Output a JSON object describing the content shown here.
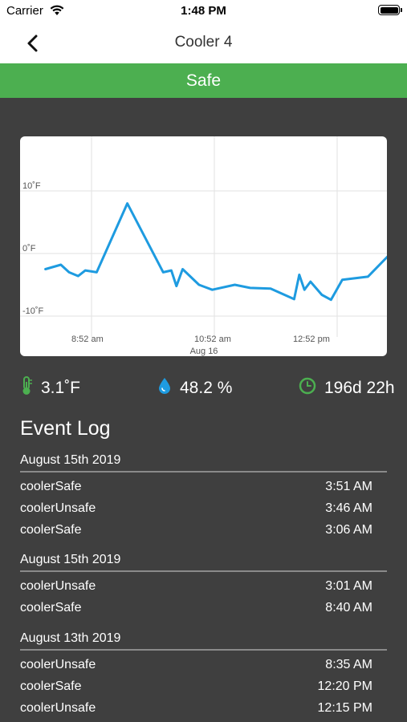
{
  "status_bar": {
    "carrier": "Carrier",
    "time": "1:48 PM"
  },
  "nav": {
    "title": "Cooler 4"
  },
  "banner": {
    "label": "Safe",
    "color": "#4caf50"
  },
  "chart_data": {
    "type": "line",
    "ylabel": "",
    "xlabel": "",
    "ylim": [
      -12,
      20
    ],
    "y_ticks": [
      "-10˚F",
      "0˚F",
      "10˚F"
    ],
    "x_ticks": [
      "8:52 am",
      "10:52 am",
      "12:52 pm"
    ],
    "x_sub_label": "Aug 16",
    "series": [
      {
        "color": "#1e9be0",
        "points": [
          [
            "8:07",
            -2.5
          ],
          [
            "8:22",
            -1.8
          ],
          [
            "8:30",
            -3.0
          ],
          [
            "8:39",
            -3.6
          ],
          [
            "8:46",
            -2.7
          ],
          [
            "8:57",
            -3.0
          ],
          [
            "9:27",
            8.0
          ],
          [
            "10:02",
            -3.0
          ],
          [
            "10:10",
            -2.7
          ],
          [
            "10:15",
            -5.2
          ],
          [
            "10:21",
            -2.5
          ],
          [
            "10:37",
            -5.0
          ],
          [
            "10:50",
            -5.8
          ],
          [
            "11:12",
            -5.0
          ],
          [
            "11:27",
            -5.5
          ],
          [
            "11:47",
            -5.6
          ],
          [
            "12:10",
            -7.3
          ],
          [
            "12:15",
            -3.4
          ],
          [
            "12:20",
            -5.8
          ],
          [
            "12:26",
            -4.5
          ],
          [
            "12:37",
            -6.6
          ],
          [
            "12:46",
            -7.4
          ],
          [
            "12:57",
            -4.2
          ],
          [
            "13:22",
            -3.7
          ],
          [
            "14:02",
            3.0
          ]
        ]
      }
    ]
  },
  "stats": {
    "temperature": "3.1˚F",
    "humidity": "48.2 %",
    "uptime": "196d 22h",
    "icons": {
      "temperature": "thermometer-icon",
      "humidity": "droplet-icon",
      "uptime": "clock-icon"
    },
    "colors": {
      "temperature": "#4caf50",
      "humidity": "#1e9be0",
      "uptime": "#4caf50"
    }
  },
  "event_log": {
    "title": "Event Log",
    "days": [
      {
        "date": "August 15th 2019",
        "events": [
          {
            "name": "coolerSafe",
            "time": "3:51 AM"
          },
          {
            "name": "coolerUnsafe",
            "time": "3:46 AM"
          },
          {
            "name": "coolerSafe",
            "time": "3:06 AM"
          }
        ]
      },
      {
        "date": "August 15th 2019",
        "events": [
          {
            "name": "coolerUnsafe",
            "time": "3:01 AM"
          },
          {
            "name": "coolerSafe",
            "time": "8:40 AM"
          }
        ]
      },
      {
        "date": "August 13th 2019",
        "events": [
          {
            "name": "coolerUnsafe",
            "time": "8:35 AM"
          },
          {
            "name": "coolerSafe",
            "time": "12:20 PM"
          },
          {
            "name": "coolerUnsafe",
            "time": "12:15 PM"
          }
        ]
      }
    ]
  }
}
